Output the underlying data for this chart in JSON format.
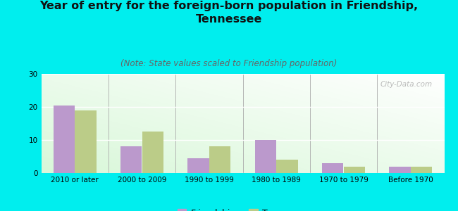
{
  "title": "Year of entry for the foreign-born population in Friendship,\nTennessee",
  "subtitle": "(Note: State values scaled to Friendship population)",
  "categories": [
    "2010 or later",
    "2000 to 2009",
    "1990 to 1999",
    "1980 to 1989",
    "1970 to 1979",
    "Before 1970"
  ],
  "friendship_values": [
    20.5,
    8.0,
    4.5,
    10.0,
    3.0,
    2.0
  ],
  "tennessee_values": [
    19.0,
    12.5,
    8.0,
    4.0,
    2.0,
    2.0
  ],
  "friendship_color": "#bb99cc",
  "tennessee_color": "#bbcc88",
  "background_color": "#00eeee",
  "ylim": [
    0,
    30
  ],
  "yticks": [
    0,
    10,
    20,
    30
  ],
  "bar_width": 0.32,
  "title_fontsize": 11.5,
  "subtitle_fontsize": 8.5,
  "tick_fontsize": 7.5,
  "legend_fontsize": 9,
  "watermark_text": "City-Data.com"
}
